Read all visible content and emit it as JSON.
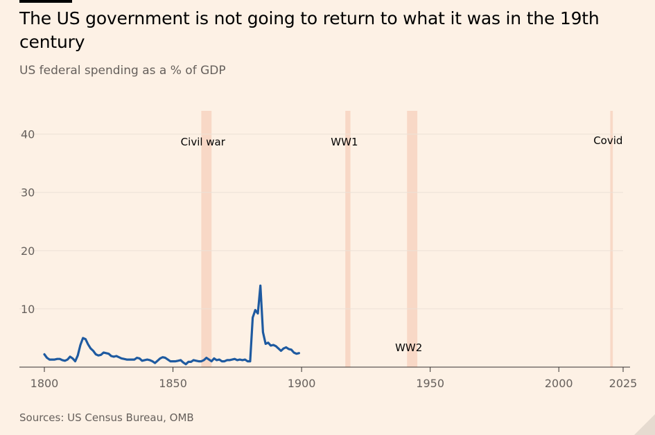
{
  "header": {
    "title": "The US government is not going to return to what it was in the 19th century",
    "subtitle": "US federal spending as a % of GDP"
  },
  "footer": {
    "source": "Sources: US Census Bureau, OMB"
  },
  "colors": {
    "background": "#fdf1e5",
    "line": "#1e5aa0",
    "band": "#f8d8c6",
    "grid": "#ece1d6"
  },
  "chart_data": {
    "type": "line",
    "title": "The US government is not going to return to what it was in the 19th century",
    "subtitle": "US federal spending as a % of GDP",
    "xlabel": "",
    "ylabel": "",
    "xlim": [
      1800,
      2025
    ],
    "ylim": [
      0,
      44
    ],
    "x_ticks": [
      1800,
      1850,
      1900,
      1950,
      2000,
      2025
    ],
    "y_ticks": [
      10,
      20,
      30,
      40
    ],
    "grid": "horizontal",
    "series": [
      {
        "points": [
          [
            1800,
            2.2
          ],
          [
            1801,
            1.6
          ],
          [
            1802,
            1.3
          ],
          [
            1803,
            1.3
          ],
          [
            1804,
            1.3
          ],
          [
            1805,
            1.4
          ],
          [
            1806,
            1.4
          ],
          [
            1807,
            1.2
          ],
          [
            1808,
            1.1
          ],
          [
            1809,
            1.3
          ],
          [
            1810,
            1.8
          ],
          [
            1811,
            1.5
          ],
          [
            1812,
            1.0
          ],
          [
            1813,
            2.0
          ],
          [
            1814,
            3.8
          ],
          [
            1815,
            5.0
          ],
          [
            1816,
            4.8
          ],
          [
            1817,
            3.9
          ],
          [
            1818,
            3.2
          ],
          [
            1819,
            2.8
          ],
          [
            1820,
            2.2
          ],
          [
            1821,
            2.0
          ],
          [
            1822,
            2.1
          ],
          [
            1823,
            2.5
          ],
          [
            1824,
            2.4
          ],
          [
            1825,
            2.3
          ],
          [
            1826,
            1.9
          ],
          [
            1827,
            1.8
          ],
          [
            1828,
            1.9
          ],
          [
            1829,
            1.7
          ],
          [
            1830,
            1.5
          ],
          [
            1831,
            1.4
          ],
          [
            1832,
            1.3
          ],
          [
            1833,
            1.3
          ],
          [
            1834,
            1.3
          ],
          [
            1835,
            1.3
          ],
          [
            1836,
            1.6
          ],
          [
            1837,
            1.5
          ],
          [
            1838,
            1.1
          ],
          [
            1839,
            1.2
          ],
          [
            1840,
            1.3
          ],
          [
            1841,
            1.2
          ],
          [
            1842,
            1.0
          ],
          [
            1843,
            0.7
          ],
          [
            1844,
            1.1
          ],
          [
            1845,
            1.5
          ],
          [
            1846,
            1.7
          ],
          [
            1847,
            1.6
          ],
          [
            1848,
            1.3
          ],
          [
            1849,
            1.0
          ],
          [
            1850,
            1.0
          ],
          [
            1851,
            1.0
          ],
          [
            1852,
            1.1
          ],
          [
            1853,
            1.2
          ],
          [
            1854,
            0.8
          ],
          [
            1855,
            0.5
          ],
          [
            1856,
            0.9
          ],
          [
            1857,
            0.9
          ],
          [
            1858,
            1.2
          ],
          [
            1859,
            1.1
          ],
          [
            1860,
            1.0
          ],
          [
            1861,
            1.0
          ],
          [
            1862,
            1.2
          ],
          [
            1863,
            1.6
          ],
          [
            1864,
            1.3
          ],
          [
            1865,
            1.0
          ],
          [
            1866,
            1.5
          ],
          [
            1867,
            1.2
          ],
          [
            1868,
            1.3
          ],
          [
            1869,
            1.0
          ],
          [
            1870,
            1.0
          ],
          [
            1871,
            1.2
          ],
          [
            1872,
            1.2
          ],
          [
            1873,
            1.3
          ],
          [
            1874,
            1.4
          ],
          [
            1875,
            1.2
          ],
          [
            1876,
            1.3
          ],
          [
            1877,
            1.2
          ],
          [
            1878,
            1.3
          ],
          [
            1879,
            1.0
          ],
          [
            1880,
            1.0
          ],
          [
            1881,
            8.5
          ],
          [
            1882,
            9.8
          ],
          [
            1883,
            9.2
          ],
          [
            1884,
            14.0
          ],
          [
            1885,
            6.0
          ],
          [
            1886,
            4.0
          ],
          [
            1887,
            4.2
          ],
          [
            1888,
            3.7
          ],
          [
            1889,
            3.8
          ],
          [
            1890,
            3.6
          ],
          [
            1891,
            3.2
          ],
          [
            1892,
            2.8
          ],
          [
            1893,
            3.2
          ],
          [
            1894,
            3.4
          ],
          [
            1895,
            3.1
          ],
          [
            1896,
            3.0
          ],
          [
            1897,
            2.5
          ],
          [
            1898,
            2.3
          ],
          [
            1899,
            2.4
          ]
        ]
      }
    ],
    "annotations": [
      {
        "label": "Civil war",
        "band": [
          1861,
          1865
        ]
      },
      {
        "label": "WW1",
        "band": [
          1917,
          1919
        ]
      },
      {
        "label": "WW2",
        "band": [
          1941,
          1945
        ]
      },
      {
        "label": "Covid",
        "band": [
          2020,
          2021
        ]
      }
    ]
  }
}
